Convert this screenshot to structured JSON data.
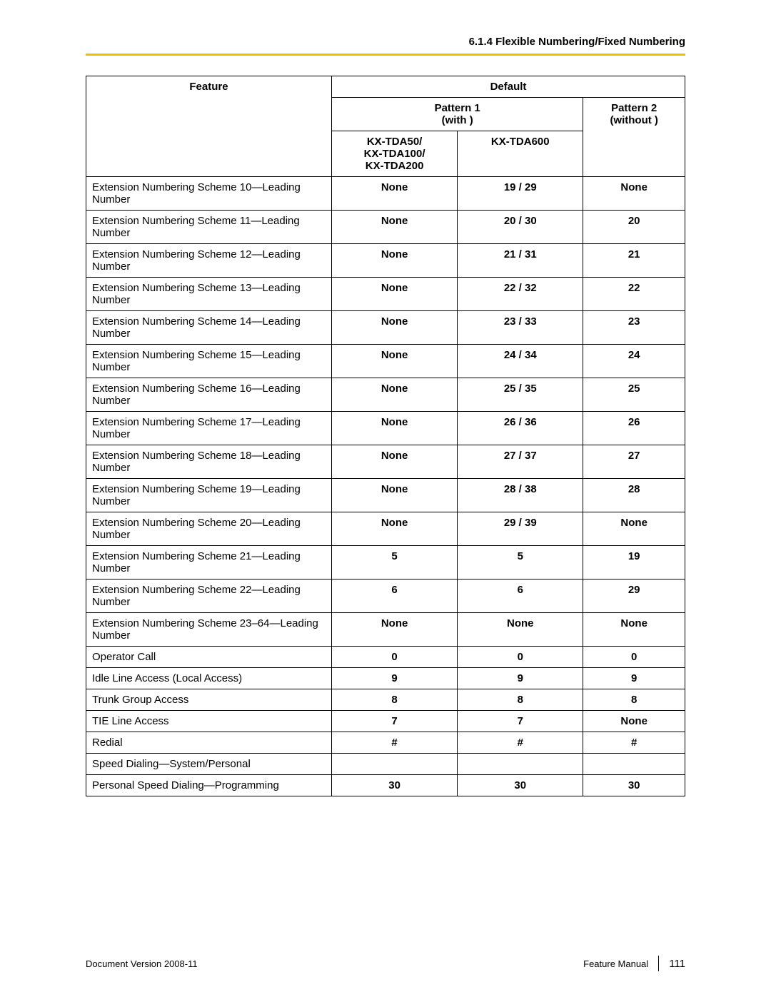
{
  "header": {
    "section_number": "6.1.4 Flexible Numbering/Fixed Numbering"
  },
  "rule_color": "#f0c000",
  "table": {
    "head": {
      "feature": "Feature",
      "default": "Default",
      "pattern1": "Pattern 1",
      "pattern1_sub": "(with     )",
      "pattern2": "Pattern 2",
      "pattern2_sub": "(without     )",
      "sub1": "KX-TDA50/\nKX-TDA100/\nKX-TDA200",
      "sub2": "KX-TDA600"
    },
    "rows": [
      {
        "feature": "Extension Numbering Scheme 10—Leading Number",
        "c1": "None",
        "c2": "19 / 29",
        "c3": "None"
      },
      {
        "feature": "Extension Numbering Scheme 11—Leading Number",
        "c1": "None",
        "c2": "20 / 30",
        "c3": "20"
      },
      {
        "feature": "Extension Numbering Scheme 12—Leading Number",
        "c1": "None",
        "c2": "21 / 31",
        "c3": "21"
      },
      {
        "feature": "Extension Numbering Scheme 13—Leading Number",
        "c1": "None",
        "c2": "22 / 32",
        "c3": "22"
      },
      {
        "feature": "Extension Numbering Scheme 14—Leading Number",
        "c1": "None",
        "c2": "23 / 33",
        "c3": "23"
      },
      {
        "feature": "Extension Numbering Scheme 15—Leading Number",
        "c1": "None",
        "c2": "24 / 34",
        "c3": "24"
      },
      {
        "feature": "Extension Numbering Scheme 16—Leading Number",
        "c1": "None",
        "c2": "25 / 35",
        "c3": "25"
      },
      {
        "feature": "Extension Numbering Scheme 17—Leading Number",
        "c1": "None",
        "c2": "26 / 36",
        "c3": "26"
      },
      {
        "feature": "Extension Numbering Scheme 18—Leading Number",
        "c1": "None",
        "c2": "27 / 37",
        "c3": "27"
      },
      {
        "feature": "Extension Numbering Scheme 19—Leading Number",
        "c1": "None",
        "c2": "28 / 38",
        "c3": "28"
      },
      {
        "feature": "Extension Numbering Scheme 20—Leading Number",
        "c1": "None",
        "c2": "29 / 39",
        "c3": "None"
      },
      {
        "feature": "Extension Numbering Scheme 21—Leading Number",
        "c1": "5",
        "c2": "5",
        "c3": "19"
      },
      {
        "feature": "Extension Numbering Scheme 22—Leading Number",
        "c1": "6",
        "c2": "6",
        "c3": "29"
      },
      {
        "feature": "Extension Numbering Scheme 23–64—Leading Number",
        "c1": "None",
        "c2": "None",
        "c3": "None"
      },
      {
        "feature": "Operator Call",
        "c1": "0",
        "c2": "0",
        "c3": "0"
      },
      {
        "feature": "Idle Line Access (Local Access)",
        "c1": "9",
        "c2": "9",
        "c3": "9"
      },
      {
        "feature": "Trunk Group Access",
        "c1": "8",
        "c2": "8",
        "c3": "8"
      },
      {
        "feature": "TIE Line Access",
        "c1": "7",
        "c2": "7",
        "c3": "None"
      },
      {
        "feature": "Redial",
        "c1": "#",
        "c2": "#",
        "c3": "#"
      },
      {
        "feature": "Speed Dialing—System/Personal",
        "c1": "",
        "c2": "",
        "c3": ""
      },
      {
        "feature": "Personal Speed Dialing—Programming",
        "c1": "30",
        "c2": "30",
        "c3": "30"
      }
    ]
  },
  "footer": {
    "doc_version_label": "Document Version  2008-11",
    "manual_label": "Feature Manual",
    "page_number": "111"
  }
}
